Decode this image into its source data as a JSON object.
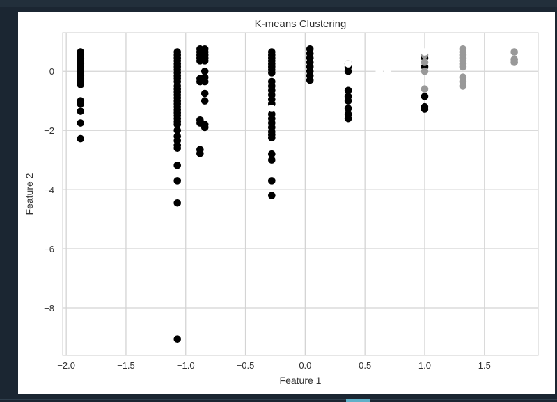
{
  "chart_data": {
    "type": "scatter",
    "title": "K-means Clustering",
    "xlabel": "Feature 1",
    "ylabel": "Feature 2",
    "xlim": [
      -2.03,
      1.95
    ],
    "ylim": [
      -9.6,
      1.3
    ],
    "xticks": [
      -2.0,
      -1.5,
      -1.0,
      -0.5,
      0.0,
      0.5,
      1.0,
      1.5
    ],
    "xtick_labels": [
      "−2.0",
      "−1.5",
      "−1.0",
      "−0.5",
      "0.0",
      "0.5",
      "1.0",
      "1.5"
    ],
    "yticks": [
      -8,
      -6,
      -4,
      -2,
      0
    ],
    "ytick_labels": [
      "−8",
      "−6",
      "−4",
      "−2",
      "0"
    ],
    "grid": true,
    "clusters": [
      {
        "color": "#000000",
        "points": [
          [
            -1.88,
            0.65
          ],
          [
            -1.88,
            0.55
          ],
          [
            -1.88,
            0.45
          ],
          [
            -1.88,
            0.35
          ],
          [
            -1.88,
            0.25
          ],
          [
            -1.88,
            0.15
          ],
          [
            -1.88,
            0.05
          ],
          [
            -1.88,
            -0.05
          ],
          [
            -1.88,
            -0.15
          ],
          [
            -1.88,
            -0.25
          ],
          [
            -1.88,
            -0.35
          ],
          [
            -1.88,
            -0.45
          ],
          [
            -1.88,
            -1.0
          ],
          [
            -1.88,
            -1.1
          ],
          [
            -1.88,
            -1.35
          ],
          [
            -1.88,
            -1.75
          ],
          [
            -1.88,
            -2.28
          ],
          [
            -1.07,
            0.65
          ],
          [
            -1.07,
            0.55
          ],
          [
            -1.07,
            0.45
          ],
          [
            -1.07,
            0.35
          ],
          [
            -1.07,
            0.25
          ],
          [
            -1.07,
            0.15
          ],
          [
            -1.07,
            0.05
          ],
          [
            -1.07,
            -0.05
          ],
          [
            -1.07,
            -0.15
          ],
          [
            -1.07,
            -0.25
          ],
          [
            -1.07,
            -0.35
          ],
          [
            -1.07,
            -0.5
          ],
          [
            -1.07,
            -0.6
          ],
          [
            -1.07,
            -0.7
          ],
          [
            -1.07,
            -0.8
          ],
          [
            -1.07,
            -0.9
          ],
          [
            -1.07,
            -1.0
          ],
          [
            -1.07,
            -1.1
          ],
          [
            -1.07,
            -1.2
          ],
          [
            -1.07,
            -1.3
          ],
          [
            -1.07,
            -1.4
          ],
          [
            -1.07,
            -1.5
          ],
          [
            -1.07,
            -1.6
          ],
          [
            -1.07,
            -1.7
          ],
          [
            -1.07,
            -1.8
          ],
          [
            -1.07,
            -2.0
          ],
          [
            -1.07,
            -2.2
          ],
          [
            -1.07,
            -2.35
          ],
          [
            -1.07,
            -2.5
          ],
          [
            -1.07,
            -2.6
          ],
          [
            -1.07,
            -3.18
          ],
          [
            -1.07,
            -3.7
          ],
          [
            -1.07,
            -4.45
          ],
          [
            -1.07,
            -9.05
          ],
          [
            -0.88,
            0.75
          ],
          [
            -0.88,
            0.65
          ],
          [
            -0.88,
            0.55
          ],
          [
            -0.88,
            0.45
          ],
          [
            -0.88,
            0.35
          ],
          [
            -0.88,
            -0.25
          ],
          [
            -0.88,
            -0.35
          ],
          [
            -0.88,
            -1.65
          ],
          [
            -0.88,
            -1.75
          ],
          [
            -0.88,
            -2.65
          ],
          [
            -0.88,
            -2.78
          ],
          [
            -0.84,
            0.75
          ],
          [
            -0.84,
            0.65
          ],
          [
            -0.84,
            0.55
          ],
          [
            -0.84,
            0.45
          ],
          [
            -0.84,
            0.35
          ],
          [
            -0.84,
            0.0
          ],
          [
            -0.84,
            -0.2
          ],
          [
            -0.84,
            -0.35
          ],
          [
            -0.84,
            -0.75
          ],
          [
            -0.84,
            -1.0
          ],
          [
            -0.84,
            -1.8
          ],
          [
            -0.84,
            -1.9
          ],
          [
            -0.28,
            0.65
          ],
          [
            -0.28,
            0.55
          ],
          [
            -0.28,
            0.45
          ],
          [
            -0.28,
            0.35
          ],
          [
            -0.28,
            0.25
          ],
          [
            -0.28,
            0.15
          ],
          [
            -0.28,
            0.05
          ],
          [
            -0.28,
            -0.05
          ],
          [
            -0.28,
            -0.35
          ],
          [
            -0.28,
            -0.5
          ],
          [
            -0.28,
            -0.65
          ],
          [
            -0.28,
            -0.8
          ],
          [
            -0.28,
            -0.95
          ],
          [
            -0.28,
            -1.1
          ],
          [
            -0.28,
            -1.45
          ],
          [
            -0.28,
            -1.6
          ],
          [
            -0.28,
            -1.75
          ],
          [
            -0.28,
            -1.9
          ],
          [
            -0.28,
            -2.05
          ],
          [
            -0.28,
            -2.15
          ],
          [
            -0.28,
            -2.25
          ],
          [
            -0.28,
            -2.8
          ],
          [
            -0.28,
            -3.0
          ],
          [
            -0.28,
            -3.7
          ],
          [
            -0.28,
            -4.2
          ],
          [
            0.04,
            0.75
          ],
          [
            0.04,
            0.6
          ],
          [
            0.04,
            0.45
          ],
          [
            0.04,
            0.3
          ],
          [
            0.04,
            0.15
          ],
          [
            0.04,
            0.0
          ],
          [
            0.04,
            -0.15
          ],
          [
            0.04,
            -0.3
          ],
          [
            0.36,
            0.25
          ],
          [
            0.36,
            0.15
          ],
          [
            0.36,
            0.0
          ],
          [
            0.36,
            -0.65
          ],
          [
            0.36,
            -0.85
          ],
          [
            0.36,
            -1.0
          ],
          [
            0.36,
            -1.25
          ],
          [
            0.36,
            -1.45
          ],
          [
            0.36,
            -1.6
          ],
          [
            1.0,
            0.45
          ],
          [
            1.0,
            0.15
          ],
          [
            1.0,
            -0.85
          ],
          [
            1.0,
            -1.2
          ],
          [
            1.0,
            -1.28
          ]
        ]
      },
      {
        "color": "#999999",
        "points": [
          [
            1.0,
            0.55
          ],
          [
            1.0,
            0.3
          ],
          [
            1.0,
            0.0
          ],
          [
            1.0,
            -0.6
          ],
          [
            1.32,
            0.75
          ],
          [
            1.32,
            0.65
          ],
          [
            1.32,
            0.55
          ],
          [
            1.32,
            0.45
          ],
          [
            1.32,
            0.35
          ],
          [
            1.32,
            0.25
          ],
          [
            1.32,
            0.15
          ],
          [
            1.32,
            -0.2
          ],
          [
            1.32,
            -0.35
          ],
          [
            1.32,
            -0.5
          ],
          [
            1.75,
            0.65
          ],
          [
            1.75,
            0.4
          ],
          [
            1.75,
            0.3
          ]
        ]
      },
      {
        "color": "#ffffff",
        "points": [
          [
            -0.28,
            -1.25
          ],
          [
            0.36,
            0.25
          ],
          [
            0.62,
            0.0
          ],
          [
            0.69,
            0.0
          ],
          [
            1.0,
            0.65
          ]
        ]
      }
    ]
  }
}
